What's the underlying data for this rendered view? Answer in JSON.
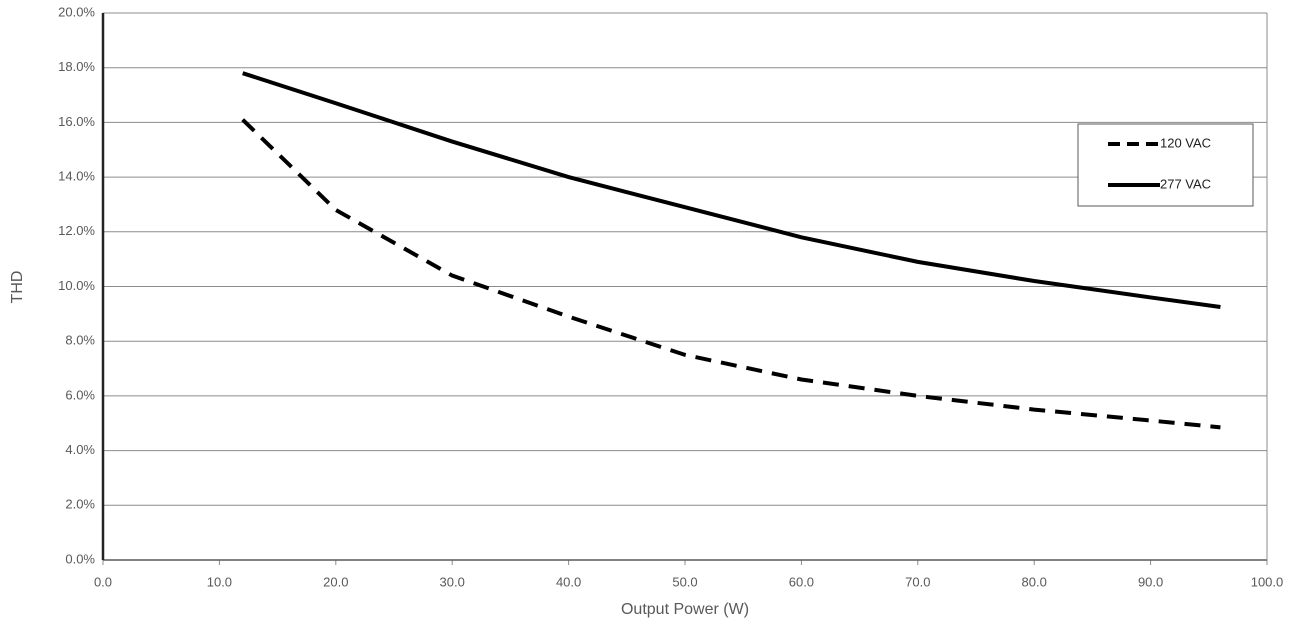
{
  "chart_data": {
    "type": "line",
    "x_label": "Output Power (W)",
    "y_label": "THD",
    "x": [
      12,
      20,
      25,
      30,
      40,
      50,
      60,
      70,
      80,
      90,
      96
    ],
    "series": [
      {
        "name": "120 VAC",
        "color": "#000000",
        "linestyle": "dashed",
        "values": [
          16.1,
          12.8,
          11.6,
          10.4,
          8.9,
          7.5,
          6.6,
          6.0,
          5.5,
          5.1,
          4.85
        ]
      },
      {
        "name": "277 VAC",
        "color": "#000000",
        "linestyle": "solid",
        "values": [
          17.8,
          16.7,
          16.0,
          15.3,
          14.0,
          12.9,
          11.8,
          10.9,
          10.2,
          9.6,
          9.25
        ]
      }
    ],
    "xlim": [
      0,
      100
    ],
    "xticks": [
      {
        "value": 0,
        "label": "0.0"
      },
      {
        "value": 10,
        "label": "10.0"
      },
      {
        "value": 20,
        "label": "20.0"
      },
      {
        "value": 30,
        "label": "30.0"
      },
      {
        "value": 40,
        "label": "40.0"
      },
      {
        "value": 50,
        "label": "50.0"
      },
      {
        "value": 60,
        "label": "60.0"
      },
      {
        "value": 70,
        "label": "70.0"
      },
      {
        "value": 80,
        "label": "80.0"
      },
      {
        "value": 90,
        "label": "90.0"
      },
      {
        "value": 100,
        "label": "100.0"
      }
    ],
    "ylim": [
      0,
      20
    ],
    "yticks": [
      {
        "value": 0,
        "label": "0.0%"
      },
      {
        "value": 2,
        "label": "2.0%"
      },
      {
        "value": 4,
        "label": "4.0%"
      },
      {
        "value": 6,
        "label": "6.0%"
      },
      {
        "value": 8,
        "label": "8.0%"
      },
      {
        "value": 10,
        "label": "10.0%"
      },
      {
        "value": 12,
        "label": "12.0%"
      },
      {
        "value": 14,
        "label": "14.0%"
      },
      {
        "value": 16,
        "label": "16.0%"
      },
      {
        "value": 18,
        "label": "18.0%"
      },
      {
        "value": 20,
        "label": "20.0%"
      }
    ],
    "grid": true,
    "legend": "upper right"
  }
}
